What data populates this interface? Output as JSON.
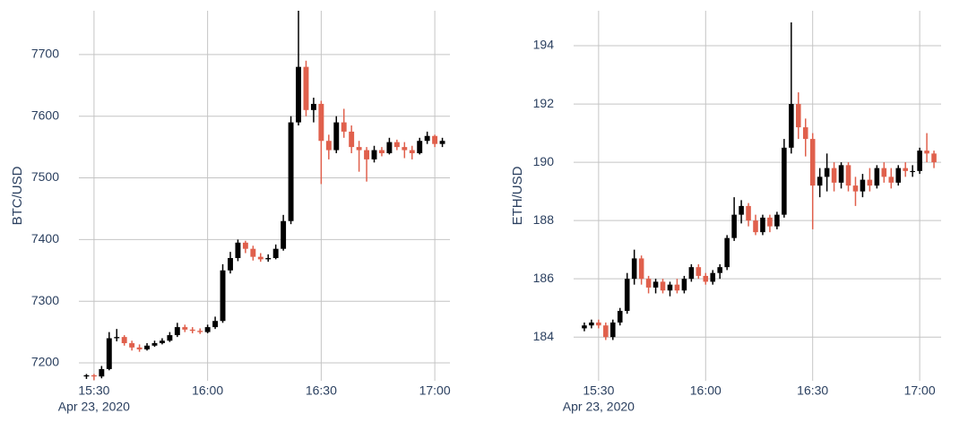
{
  "chart_data": [
    {
      "type": "candlestick",
      "y_label": "BTC/USD",
      "x_date_label": "Apr 23, 2020",
      "increasing_color": "#000000",
      "decreasing_color": "#e0604c",
      "grid": true,
      "xlim": [
        "2020-04-23 15:26",
        "2020-04-23 17:04"
      ],
      "xticks": [
        {
          "value": "2020-04-23 15:30",
          "label": "15:30"
        },
        {
          "value": "2020-04-23 16:00",
          "label": "16:00"
        },
        {
          "value": "2020-04-23 16:30",
          "label": "16:30"
        },
        {
          "value": "2020-04-23 17:00",
          "label": "17:00"
        }
      ],
      "ylim": [
        7171,
        7771
      ],
      "yticks": [
        7200,
        7300,
        7400,
        7500,
        7600,
        7700
      ],
      "x": [
        "2020-04-23 15:28",
        "2020-04-23 15:30",
        "2020-04-23 15:32",
        "2020-04-23 15:34",
        "2020-04-23 15:36",
        "2020-04-23 15:38",
        "2020-04-23 15:40",
        "2020-04-23 15:42",
        "2020-04-23 15:44",
        "2020-04-23 15:46",
        "2020-04-23 15:48",
        "2020-04-23 15:50",
        "2020-04-23 15:52",
        "2020-04-23 15:54",
        "2020-04-23 15:56",
        "2020-04-23 15:58",
        "2020-04-23 16:00",
        "2020-04-23 16:02",
        "2020-04-23 16:04",
        "2020-04-23 16:06",
        "2020-04-23 16:08",
        "2020-04-23 16:10",
        "2020-04-23 16:12",
        "2020-04-23 16:14",
        "2020-04-23 16:16",
        "2020-04-23 16:18",
        "2020-04-23 16:20",
        "2020-04-23 16:22",
        "2020-04-23 16:24",
        "2020-04-23 16:26",
        "2020-04-23 16:28",
        "2020-04-23 16:30",
        "2020-04-23 16:32",
        "2020-04-23 16:34",
        "2020-04-23 16:36",
        "2020-04-23 16:38",
        "2020-04-23 16:40",
        "2020-04-23 16:42",
        "2020-04-23 16:44",
        "2020-04-23 16:46",
        "2020-04-23 16:48",
        "2020-04-23 16:50",
        "2020-04-23 16:52",
        "2020-04-23 16:54",
        "2020-04-23 16:56",
        "2020-04-23 16:58",
        "2020-04-23 17:00",
        "2020-04-23 17:02"
      ],
      "open": [
        7178,
        7180,
        7178,
        7190,
        7240,
        7242,
        7232,
        7225,
        7222,
        7228,
        7232,
        7236,
        7245,
        7258,
        7254,
        7252,
        7250,
        7258,
        7268,
        7350,
        7370,
        7395,
        7385,
        7372,
        7368,
        7370,
        7385,
        7430,
        7590,
        7680,
        7610,
        7620,
        7560,
        7545,
        7590,
        7575,
        7550,
        7545,
        7530,
        7545,
        7540,
        7558,
        7550,
        7545,
        7540,
        7560,
        7568,
        7555
      ],
      "high": [
        7182,
        7182,
        7195,
        7250,
        7255,
        7245,
        7236,
        7230,
        7232,
        7236,
        7240,
        7250,
        7265,
        7262,
        7258,
        7256,
        7262,
        7275,
        7360,
        7380,
        7400,
        7398,
        7390,
        7378,
        7376,
        7392,
        7440,
        7600,
        7771,
        7690,
        7630,
        7625,
        7570,
        7600,
        7612,
        7585,
        7560,
        7550,
        7552,
        7550,
        7565,
        7562,
        7558,
        7552,
        7565,
        7575,
        7570,
        7565
      ],
      "low": [
        7174,
        7172,
        7175,
        7188,
        7235,
        7228,
        7220,
        7218,
        7220,
        7226,
        7230,
        7234,
        7242,
        7250,
        7248,
        7247,
        7248,
        7255,
        7265,
        7345,
        7365,
        7378,
        7366,
        7364,
        7364,
        7368,
        7382,
        7425,
        7585,
        7600,
        7590,
        7490,
        7530,
        7540,
        7565,
        7540,
        7510,
        7494,
        7525,
        7535,
        7538,
        7545,
        7532,
        7530,
        7538,
        7555,
        7550,
        7550
      ],
      "close": [
        7180,
        7178,
        7190,
        7240,
        7242,
        7232,
        7225,
        7222,
        7228,
        7232,
        7236,
        7245,
        7258,
        7254,
        7252,
        7250,
        7258,
        7268,
        7350,
        7370,
        7395,
        7385,
        7372,
        7368,
        7370,
        7385,
        7430,
        7590,
        7680,
        7610,
        7620,
        7560,
        7545,
        7590,
        7575,
        7550,
        7545,
        7530,
        7545,
        7540,
        7558,
        7550,
        7545,
        7540,
        7560,
        7568,
        7555,
        7560
      ]
    },
    {
      "type": "candlestick",
      "y_label": "ETH/USD",
      "x_date_label": "Apr 23, 2020",
      "increasing_color": "#000000",
      "decreasing_color": "#e0604c",
      "grid": true,
      "xlim": [
        "2020-04-23 15:23",
        "2020-04-23 17:06"
      ],
      "xticks": [
        {
          "value": "2020-04-23 15:30",
          "label": "15:30"
        },
        {
          "value": "2020-04-23 16:00",
          "label": "16:00"
        },
        {
          "value": "2020-04-23 16:30",
          "label": "16:30"
        },
        {
          "value": "2020-04-23 17:00",
          "label": "17:00"
        }
      ],
      "ylim": [
        182.5,
        195.2
      ],
      "yticks": [
        184,
        186,
        188,
        190,
        192,
        194
      ],
      "x": [
        "2020-04-23 15:26",
        "2020-04-23 15:28",
        "2020-04-23 15:30",
        "2020-04-23 15:32",
        "2020-04-23 15:34",
        "2020-04-23 15:36",
        "2020-04-23 15:38",
        "2020-04-23 15:40",
        "2020-04-23 15:42",
        "2020-04-23 15:44",
        "2020-04-23 15:46",
        "2020-04-23 15:48",
        "2020-04-23 15:50",
        "2020-04-23 15:52",
        "2020-04-23 15:54",
        "2020-04-23 15:56",
        "2020-04-23 15:58",
        "2020-04-23 16:00",
        "2020-04-23 16:02",
        "2020-04-23 16:04",
        "2020-04-23 16:06",
        "2020-04-23 16:08",
        "2020-04-23 16:10",
        "2020-04-23 16:12",
        "2020-04-23 16:14",
        "2020-04-23 16:16",
        "2020-04-23 16:18",
        "2020-04-23 16:20",
        "2020-04-23 16:22",
        "2020-04-23 16:24",
        "2020-04-23 16:26",
        "2020-04-23 16:28",
        "2020-04-23 16:30",
        "2020-04-23 16:32",
        "2020-04-23 16:34",
        "2020-04-23 16:36",
        "2020-04-23 16:38",
        "2020-04-23 16:40",
        "2020-04-23 16:42",
        "2020-04-23 16:44",
        "2020-04-23 16:46",
        "2020-04-23 16:48",
        "2020-04-23 16:50",
        "2020-04-23 16:52",
        "2020-04-23 16:54",
        "2020-04-23 16:56",
        "2020-04-23 16:58",
        "2020-04-23 17:00",
        "2020-04-23 17:02",
        "2020-04-23 17:04"
      ],
      "open": [
        184.3,
        184.4,
        184.5,
        184.4,
        184.0,
        184.5,
        184.9,
        186.0,
        186.7,
        186.0,
        185.7,
        185.9,
        185.6,
        185.8,
        185.6,
        186.0,
        186.4,
        186.1,
        185.9,
        186.2,
        186.4,
        187.4,
        188.2,
        188.5,
        188.0,
        187.6,
        188.1,
        187.8,
        188.2,
        190.5,
        192.0,
        191.2,
        190.8,
        189.2,
        189.5,
        189.8,
        189.3,
        189.9,
        189.2,
        189.0,
        189.4,
        189.2,
        189.8,
        189.5,
        189.3,
        189.8,
        189.7,
        189.7,
        190.4,
        190.3
      ],
      "high": [
        184.5,
        184.6,
        184.6,
        184.5,
        184.6,
        185.0,
        186.2,
        187.0,
        186.8,
        186.1,
        186.0,
        186.0,
        185.9,
        186.0,
        186.1,
        186.5,
        186.5,
        186.2,
        186.3,
        186.5,
        187.5,
        188.8,
        188.7,
        188.6,
        188.2,
        188.2,
        188.2,
        188.3,
        190.8,
        194.8,
        192.4,
        191.5,
        191.0,
        189.8,
        190.3,
        190.0,
        190.0,
        190.0,
        189.5,
        189.6,
        189.8,
        189.9,
        190.0,
        189.8,
        189.9,
        190.0,
        189.9,
        190.5,
        191.0,
        190.4
      ],
      "low": [
        184.2,
        184.3,
        184.3,
        183.9,
        183.9,
        184.4,
        184.8,
        185.8,
        185.8,
        185.5,
        185.5,
        185.5,
        185.4,
        185.5,
        185.5,
        185.9,
        186.0,
        185.8,
        185.8,
        186.0,
        186.3,
        187.3,
        187.9,
        187.8,
        187.5,
        187.5,
        187.6,
        187.7,
        188.1,
        190.3,
        190.8,
        190.2,
        187.7,
        188.8,
        189.0,
        189.0,
        189.1,
        189.0,
        188.5,
        188.8,
        189.0,
        189.1,
        189.3,
        189.1,
        189.2,
        189.5,
        189.5,
        189.6,
        190.0,
        189.8
      ],
      "close": [
        184.4,
        184.5,
        184.4,
        184.0,
        184.5,
        184.9,
        186.0,
        186.7,
        186.0,
        185.7,
        185.9,
        185.6,
        185.8,
        185.6,
        186.0,
        186.4,
        186.1,
        185.9,
        186.2,
        186.4,
        187.4,
        188.2,
        188.5,
        188.0,
        187.6,
        188.1,
        187.8,
        188.2,
        190.5,
        192.0,
        191.2,
        190.8,
        189.2,
        189.5,
        189.8,
        189.3,
        189.9,
        189.2,
        189.0,
        189.4,
        189.2,
        189.8,
        189.5,
        189.3,
        189.8,
        189.7,
        189.7,
        190.4,
        190.3,
        190.0
      ]
    }
  ]
}
